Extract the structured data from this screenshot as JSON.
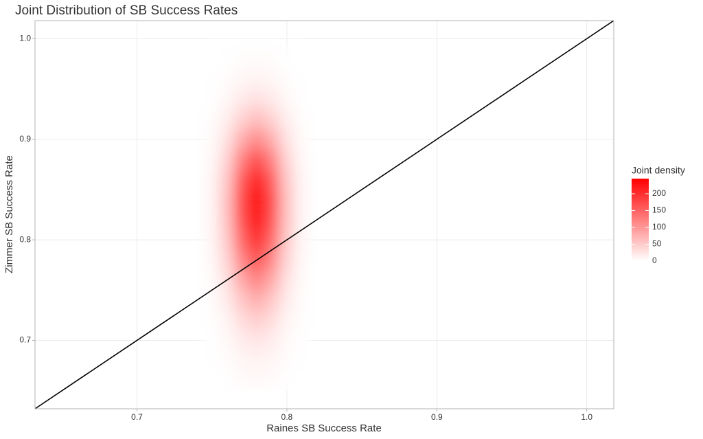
{
  "chart_data": {
    "type": "heatmap",
    "title": "Joint Distribution of SB Success Rates",
    "x_label": "Raines SB Success Rate",
    "y_label": "Zimmer SB Success Rate",
    "x": [
      0.75,
      0.76,
      0.77,
      0.78,
      0.79,
      0.8,
      0.81
    ],
    "y": [
      0.66,
      0.68,
      0.7,
      0.72,
      0.74,
      0.76,
      0.78,
      0.8,
      0.82,
      0.84,
      0.86,
      0.88,
      0.9,
      0.92,
      0.94,
      0.96,
      0.98
    ],
    "z": [
      [
        0,
        1,
        4,
        6,
        4,
        1,
        0
      ],
      [
        1,
        3,
        9,
        12,
        9,
        3,
        1
      ],
      [
        1,
        6,
        18,
        25,
        18,
        6,
        1
      ],
      [
        2,
        11,
        33,
        46,
        33,
        11,
        2
      ],
      [
        3,
        19,
        54,
        77,
        54,
        19,
        3
      ],
      [
        5,
        29,
        83,
        117,
        83,
        29,
        5
      ],
      [
        7,
        40,
        114,
        161,
        114,
        40,
        7
      ],
      [
        9,
        50,
        143,
        202,
        143,
        50,
        9
      ],
      [
        10,
        58,
        163,
        231,
        163,
        58,
        10
      ],
      [
        11,
        60,
        170,
        240,
        170,
        60,
        11
      ],
      [
        10,
        54,
        154,
        218,
        154,
        54,
        10
      ],
      [
        7,
        42,
        119,
        169,
        119,
        42,
        7
      ],
      [
        5,
        28,
        79,
        111,
        79,
        28,
        5
      ],
      [
        3,
        16,
        44,
        63,
        44,
        16,
        3
      ],
      [
        1,
        7,
        21,
        30,
        21,
        7,
        1
      ],
      [
        1,
        3,
        9,
        12,
        9,
        3,
        1
      ],
      [
        0,
        1,
        3,
        4,
        3,
        1,
        0
      ]
    ],
    "xlim": [
      0.632,
      1.018
    ],
    "ylim": [
      0.632,
      1.018
    ],
    "xticks": [
      0.7,
      0.8,
      0.9,
      {
        "value": 1,
        "label": "1.0"
      }
    ],
    "yticks": [
      0.7,
      0.8,
      0.9,
      {
        "value": 1,
        "label": "1.0"
      }
    ],
    "grid": true,
    "colors": [
      "#ffffff",
      "#ff0000"
    ],
    "zlim": [
      0,
      245
    ],
    "legend": {
      "title": "Joint density",
      "ticks": [
        0,
        50,
        100,
        150,
        200
      ],
      "position": "right"
    },
    "abline": {
      "intercept": 0,
      "slope": 1,
      "color": "#000000"
    }
  }
}
